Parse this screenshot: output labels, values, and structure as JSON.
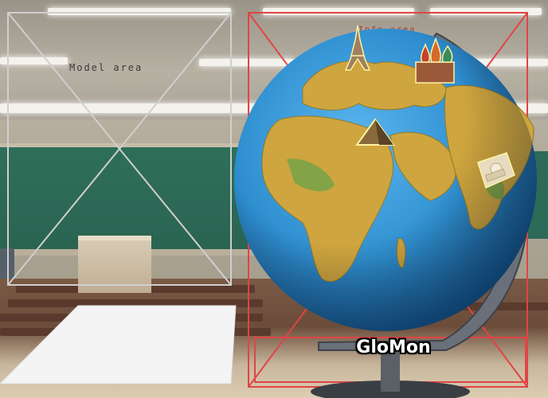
{
  "labels": {
    "model_area": "Model area",
    "info_area": "Info area",
    "game_title": "GloMon"
  },
  "colors": {
    "frame_gray": "#c9c9c9",
    "frame_red": "#e04040",
    "ocean": "#2f8fd0",
    "land": "#c9a23c"
  },
  "landmarks": [
    {
      "name": "eiffel-tower-icon"
    },
    {
      "name": "st-basils-cathedral-icon"
    },
    {
      "name": "pyramid-icon"
    },
    {
      "name": "taj-mahal-icon"
    }
  ]
}
